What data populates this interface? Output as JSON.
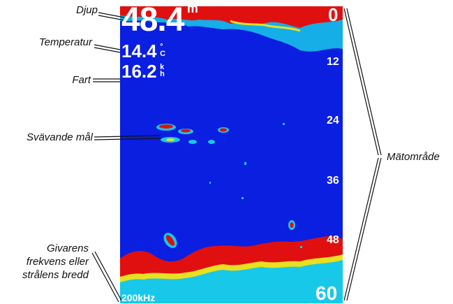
{
  "callouts": {
    "depth": "Djup",
    "temperature": "Temperatur",
    "speed": "Fart",
    "suspended_targets": "Svävande mål",
    "transducer_freq": [
      "Givarens",
      "frekvens eller",
      "strålens bredd"
    ],
    "range": "Mätområde"
  },
  "readouts": {
    "depth_value": "48.4",
    "depth_unit": "m",
    "temp_value": "14.4",
    "temp_unit_top": "°",
    "temp_unit_bottom": "C",
    "speed_value": "16.2",
    "speed_unit_top": "k",
    "speed_unit_bottom": "h",
    "frequency": "200kHz"
  },
  "scale": {
    "top": "0",
    "ticks": [
      "12",
      "24",
      "36",
      "48"
    ],
    "bottom": "60"
  },
  "colors": {
    "water": "#0a1fe0",
    "bottom_return": "#e01010",
    "return_mid": "#e8e020",
    "clutter": "#18c8e8"
  }
}
